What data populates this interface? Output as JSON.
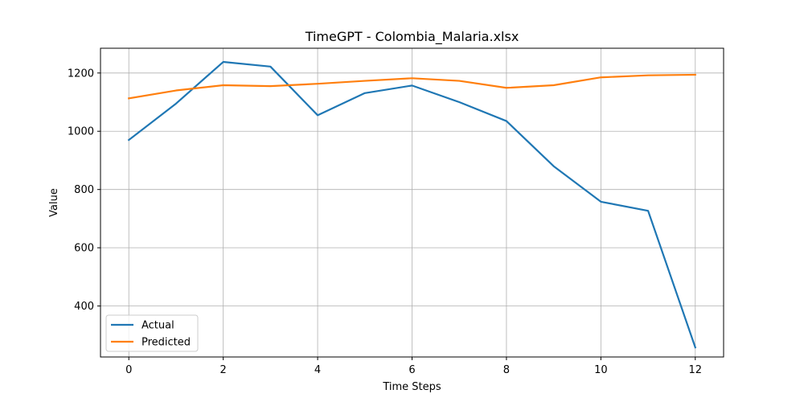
{
  "chart_data": {
    "type": "line",
    "title": "TimeGPT - Colombia_Malaria.xlsx",
    "xlabel": "Time Steps",
    "ylabel": "Value",
    "x": [
      0,
      1,
      2,
      3,
      4,
      5,
      6,
      7,
      8,
      9,
      10,
      11,
      12
    ],
    "xticks": [
      0,
      2,
      4,
      6,
      8,
      10,
      12
    ],
    "yticks": [
      400,
      600,
      800,
      1000,
      1200
    ],
    "xlim": [
      -0.6,
      12.6
    ],
    "ylim": [
      225,
      1285
    ],
    "grid": true,
    "legend_position": "lower-left",
    "series": [
      {
        "name": "Actual",
        "color": "#1f77b4",
        "values": [
          970,
          1095,
          1238,
          1222,
          1055,
          1131,
          1157,
          1100,
          1035,
          880,
          758,
          727,
          258
        ]
      },
      {
        "name": "Predicted",
        "color": "#ff7f0e",
        "values": [
          1113,
          1140,
          1158,
          1155,
          1163,
          1173,
          1182,
          1173,
          1149,
          1158,
          1185,
          1192,
          1194
        ]
      }
    ]
  }
}
